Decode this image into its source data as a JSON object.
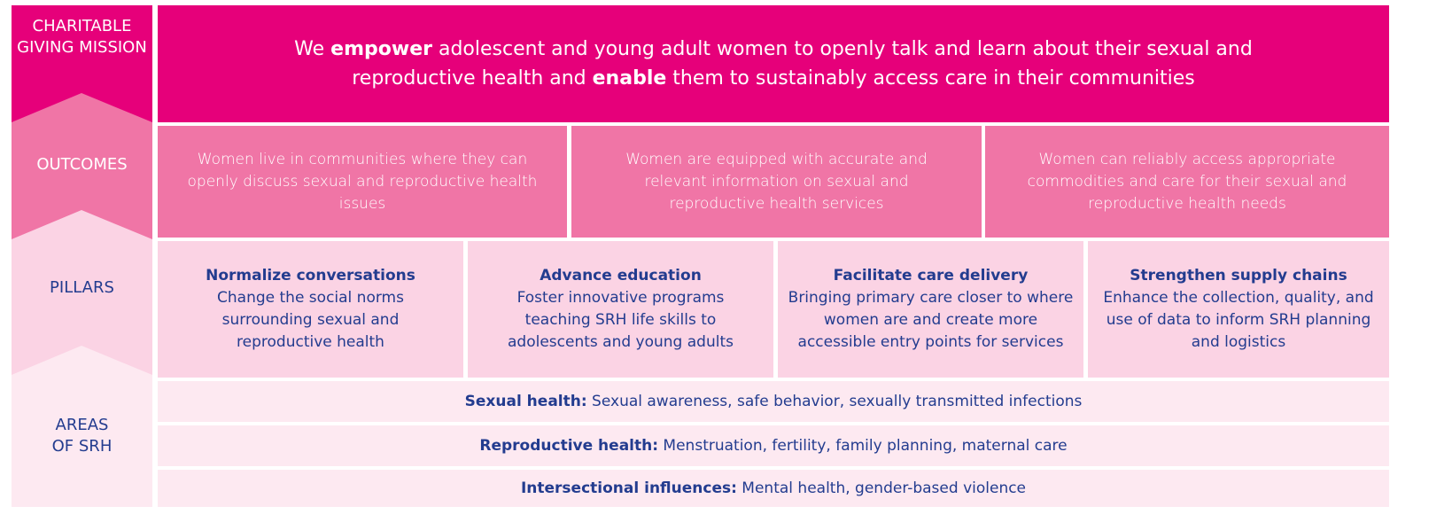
{
  "sections": [
    {
      "label": "CHARITABLE GIVING MISSION"
    },
    {
      "label": "OUTCOMES"
    },
    {
      "label": "PILLARS"
    },
    {
      "label": "AREAS OF SRH"
    }
  ],
  "mission": [
    "We ",
    "empower",
    " adolescent and young adult women to openly talk and learn about their sexual and reproductive health and ",
    "enable",
    " them to sustainably access care in their communities"
  ],
  "outcomes": [
    "Women live in communities where they can openly discuss sexual and reproductive health issues",
    "Women are equipped with accurate and relevant information on sexual and reproductive health services",
    "Women can reliably access appropriate commodities and care for their sexual and reproductive health needs"
  ],
  "pillars": [
    {
      "title": "Normalize conversations",
      "text": "Change the social norms surrounding sexual and reproductive health"
    },
    {
      "title": "Advance education",
      "text": "Foster innovative programs teaching SRH life skills to adolescents and young adults"
    },
    {
      "title": "Facilitate care delivery",
      "text": "Bringing primary care closer to where women are and create more accessible entry points for services"
    },
    {
      "title": "Strengthen supply chains",
      "text": "Enhance the collection, quality, and use of data to inform SRH planning and logistics"
    }
  ],
  "areas": [
    {
      "title": "Sexual health:",
      "text": " Sexual awareness, safe behavior, sexually transmitted infections"
    },
    {
      "title": "Reproductive health:",
      "text": " Menstruation, fertility, family planning, maternal care"
    },
    {
      "title": "Intersectional influences:",
      "text": " Mental health, gender-based violence"
    }
  ]
}
